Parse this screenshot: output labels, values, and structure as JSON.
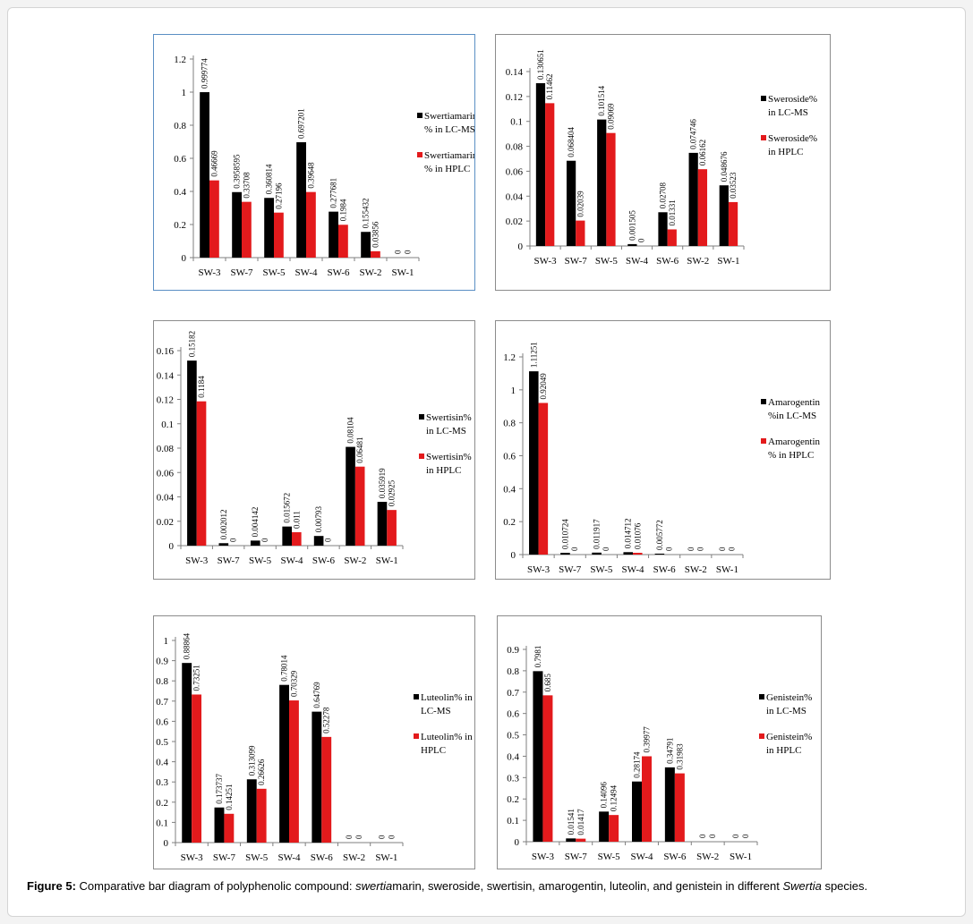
{
  "figure": {
    "caption_label": "Figure 5:",
    "caption_part1": " Comparative bar diagram of polyphenolic compound: ",
    "caption_italic1": "swertia",
    "caption_part2": "marin, sweroside, swertisin, amarogentin, luteolin, and genistein in different ",
    "caption_italic2": "Swertia",
    "caption_part3": " species."
  },
  "colors": {
    "lcms": "#000000",
    "hplc": "#e31a1c",
    "axis": "#7f7f7f",
    "panel_border": "#5a8fc4"
  },
  "chart_data": [
    {
      "type": "bar",
      "categories": [
        "SW-3",
        "SW-7",
        "SW-5",
        "SW-4",
        "SW-6",
        "SW-2",
        "SW-1"
      ],
      "ylim": [
        0,
        1.2
      ],
      "yticks": [
        "0",
        "0.2",
        "0.4",
        "0.6",
        "0.8",
        "1",
        "1.2"
      ],
      "series": [
        {
          "legend_lines": [
            "Swertiamarin",
            "% in LC-MS"
          ],
          "values": [
            0.999774,
            0.3958595,
            0.360814,
            0.697201,
            0.277681,
            0.155432,
            0
          ],
          "labels": [
            "0.999774",
            "0.3958595",
            "0.360814",
            "0.697201",
            "0.277681",
            "0.155432",
            "0"
          ]
        },
        {
          "legend_lines": [
            "Swertiamarin",
            "% in HPLC"
          ],
          "values": [
            0.46669,
            0.33708,
            0.27196,
            0.39648,
            0.1984,
            0.03856,
            0
          ],
          "labels": [
            "0.46669",
            "0.33708",
            "0.27196",
            "0.39648",
            "0.1984",
            "0.03856",
            "0"
          ]
        }
      ]
    },
    {
      "type": "bar",
      "categories": [
        "SW-3",
        "SW-7",
        "SW-5",
        "SW-4",
        "SW-6",
        "SW-2",
        "SW-1"
      ],
      "ylim": [
        0,
        0.14
      ],
      "yticks": [
        "0",
        "0.02",
        "0.04",
        "0.06",
        "0.08",
        "0.1",
        "0.12",
        "0.14"
      ],
      "series": [
        {
          "legend_lines": [
            "Sweroside%",
            "in LC-MS"
          ],
          "values": [
            0.130651,
            0.068404,
            0.101514,
            0.001505,
            0.02708,
            0.074746,
            0.048676
          ],
          "labels": [
            "0.130651",
            "0.068404",
            "0.101514",
            "0.001505",
            "0.02708",
            "0.074746",
            "0.048676"
          ]
        },
        {
          "legend_lines": [
            "Sweroside%",
            "in HPLC"
          ],
          "values": [
            0.11462,
            0.02039,
            0.09069,
            0,
            0.01331,
            0.06162,
            0.03523
          ],
          "labels": [
            "0.11462",
            "0.02039",
            "0.09069",
            "0",
            "0.01331",
            "0.06162",
            "0.03523"
          ]
        }
      ]
    },
    {
      "type": "bar",
      "categories": [
        "SW-3",
        "SW-7",
        "SW-5",
        "SW-4",
        "SW-6",
        "SW-2",
        "SW-1"
      ],
      "ylim": [
        0,
        0.16
      ],
      "yticks": [
        "0",
        "0.02",
        "0.04",
        "0.06",
        "0.08",
        "0.1",
        "0.12",
        "0.14",
        "0.16"
      ],
      "series": [
        {
          "legend_lines": [
            "Swertisin%",
            "in LC-MS"
          ],
          "values": [
            0.15182,
            0.002012,
            0.004142,
            0.015672,
            0.00793,
            0.08104,
            0.035919
          ],
          "labels": [
            "0.15182",
            "0.002012",
            "0.004142",
            "0.015672",
            "0.00793",
            "0.08104",
            "0.035919"
          ]
        },
        {
          "legend_lines": [
            "Swertisin%",
            "in HPLC"
          ],
          "values": [
            0.1184,
            0,
            0,
            0.011,
            0,
            0.06481,
            0.02925
          ],
          "labels": [
            "0.1184",
            "0",
            "0",
            "0.011",
            "0",
            "0.06481",
            "0.02925"
          ]
        }
      ]
    },
    {
      "type": "bar",
      "categories": [
        "SW-3",
        "SW-7",
        "SW-5",
        "SW-4",
        "SW-6",
        "SW-2",
        "SW-1"
      ],
      "ylim": [
        0,
        1.2
      ],
      "yticks": [
        "0",
        "0.2",
        "0.4",
        "0.6",
        "0.8",
        "1",
        "1.2"
      ],
      "series": [
        {
          "legend_lines": [
            "Amarogentin",
            "%in LC-MS"
          ],
          "values": [
            1.11251,
            0.010724,
            0.011917,
            0.014712,
            0.005772,
            0,
            0
          ],
          "labels": [
            "1.11251",
            "0.010724",
            "0.011917",
            "0.014712",
            "0.005772",
            "0",
            "0"
          ]
        },
        {
          "legend_lines": [
            "Amarogentin",
            "% in HPLC"
          ],
          "values": [
            0.92049,
            0,
            0,
            0.01076,
            0,
            0,
            0
          ],
          "labels": [
            "0.92049",
            "0",
            "0",
            "0.01076",
            "0",
            "0",
            "0"
          ]
        }
      ]
    },
    {
      "type": "bar",
      "categories": [
        "SW-3",
        "SW-7",
        "SW-5",
        "SW-4",
        "SW-6",
        "SW-2",
        "SW-1"
      ],
      "ylim": [
        0,
        1
      ],
      "yticks": [
        "0",
        "0.1",
        "0.2",
        "0.3",
        "0.4",
        "0.5",
        "0.6",
        "0.7",
        "0.8",
        "0.9",
        "1"
      ],
      "series": [
        {
          "legend_lines": [
            "Luteolin% in",
            "LC-MS"
          ],
          "values": [
            0.88864,
            0.173737,
            0.313099,
            0.78014,
            0.64769,
            0,
            0
          ],
          "labels": [
            "0.88864",
            "0.173737",
            "0.313099",
            "0.78014",
            "0.64769",
            "0",
            "0"
          ]
        },
        {
          "legend_lines": [
            "Luteolin% in",
            "HPLC"
          ],
          "values": [
            0.73251,
            0.14251,
            0.26626,
            0.70329,
            0.52278,
            0,
            0
          ],
          "labels": [
            "0.73251",
            "0.14251",
            "0.26626",
            "0.70329",
            "0.52278",
            "0",
            "0"
          ]
        }
      ]
    },
    {
      "type": "bar",
      "categories": [
        "SW-3",
        "SW-7",
        "SW-5",
        "SW-4",
        "SW-6",
        "SW-2",
        "SW-1"
      ],
      "ylim": [
        0,
        0.9
      ],
      "yticks": [
        "0",
        "0.1",
        "0.2",
        "0.3",
        "0.4",
        "0.5",
        "0.6",
        "0.7",
        "0.8",
        "0.9"
      ],
      "series": [
        {
          "legend_lines": [
            "Genistein%",
            "in LC-MS"
          ],
          "values": [
            0.7981,
            0.01541,
            0.14096,
            0.28174,
            0.34791,
            0,
            0
          ],
          "labels": [
            "0.7981",
            "0.01541",
            "0.14096",
            "0.28174",
            "0.34791",
            "0",
            "0"
          ]
        },
        {
          "legend_lines": [
            "Genistein%",
            "in HPLC"
          ],
          "values": [
            0.685,
            0.01417,
            0.12494,
            0.39977,
            0.31983,
            0,
            0
          ],
          "labels": [
            "0.685",
            "0.01417",
            "0.12494",
            "0.39977",
            "0.31983",
            "0",
            "0"
          ]
        }
      ]
    }
  ]
}
